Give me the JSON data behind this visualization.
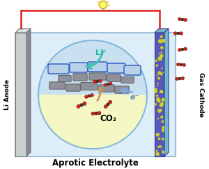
{
  "bg_color": "#ffffff",
  "title": "Aprotic Electrolyte",
  "title_fontsize": 8.5,
  "title_fontweight": "bold",
  "li_anode_label": "Li Anode",
  "gas_cathode_label": "Gas Cathode",
  "co2_label": "CO₂",
  "li_ion_label": "Li⁺",
  "electron_label": "e⁻",
  "anode_color_light": "#c8d0d0",
  "anode_color_mid": "#a8b0b0",
  "anode_color_dark": "#888898",
  "cathode_color": "#5858b8",
  "cathode_spots": "#d8d818",
  "cathode_edge_color": "#70b8c8",
  "box_bg": "#ddeef8",
  "box_edge": "#a0c0d8",
  "circle_bg": "#c8e0f0",
  "circle_inner": "#f8f8c0",
  "wire_color": "#e02020",
  "bulb_body": "#ffff60",
  "co2_arrow_color": "#c89860",
  "electron_arrow_color": "#80a8e0",
  "liion_arrow_color": "#40c0b0",
  "co2_red": "#d82010",
  "co2_dark": "#282828",
  "gray_electrode": "#909098",
  "blue_electrode_fill": "#b8d0e8",
  "blue_electrode_edge": "#2858c0"
}
